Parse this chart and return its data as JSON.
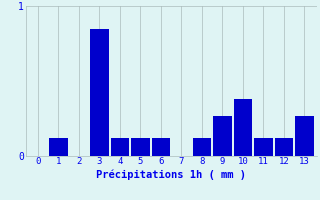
{
  "categories": [
    0,
    1,
    2,
    3,
    4,
    5,
    6,
    7,
    8,
    9,
    10,
    11,
    12,
    13
  ],
  "values": [
    0,
    0.12,
    0,
    0.85,
    0.12,
    0.12,
    0.12,
    0,
    0.12,
    0.27,
    0.38,
    0.12,
    0.12,
    0.27
  ],
  "bar_color": "#0000cc",
  "background_color": "#dff4f4",
  "grid_color": "#aabbbb",
  "xlabel": "Précipitations 1h ( mm )",
  "xlabel_color": "#0000ee",
  "tick_color": "#0000ee",
  "ylim": [
    0,
    1.0
  ],
  "yticks": [
    0,
    1
  ],
  "bar_width": 0.9,
  "figsize": [
    3.2,
    2.0
  ],
  "dpi": 100
}
